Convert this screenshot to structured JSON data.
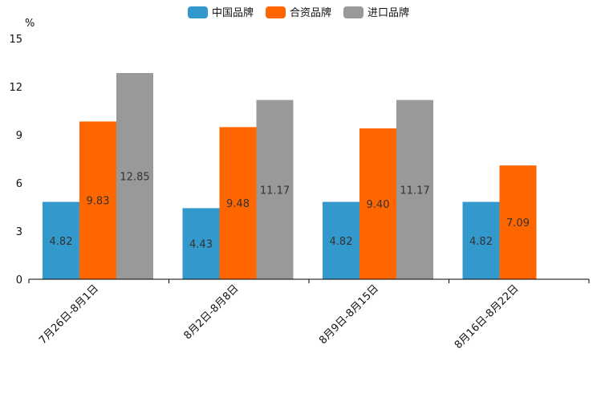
{
  "chart_data": {
    "type": "bar",
    "unit": "%",
    "categories": [
      "7月26日-8月1日",
      "8月2日-8月8日",
      "8月9日-8月15日",
      "8月16日-8月22日"
    ],
    "series": [
      {
        "name": "中国品牌",
        "color": "#3399cc",
        "values": [
          4.82,
          4.43,
          4.82,
          4.82
        ],
        "labels": [
          "4.82",
          "4.43",
          "4.82",
          "4.82"
        ]
      },
      {
        "name": "合资品牌",
        "color": "#ff6600",
        "values": [
          9.83,
          9.48,
          9.4,
          7.09
        ],
        "labels": [
          "9.83",
          "9.48",
          "9.40",
          "7.09"
        ]
      },
      {
        "name": "进口品牌",
        "color": "#999999",
        "values": [
          12.85,
          11.17,
          11.17,
          null
        ],
        "labels": [
          "12.85",
          "11.17",
          "11.17",
          null
        ]
      }
    ],
    "ylim": [
      0,
      15
    ],
    "yticks": [
      "0",
      "3",
      "6",
      "9",
      "12",
      "15"
    ],
    "grid": false,
    "legend_position": "top-center"
  }
}
